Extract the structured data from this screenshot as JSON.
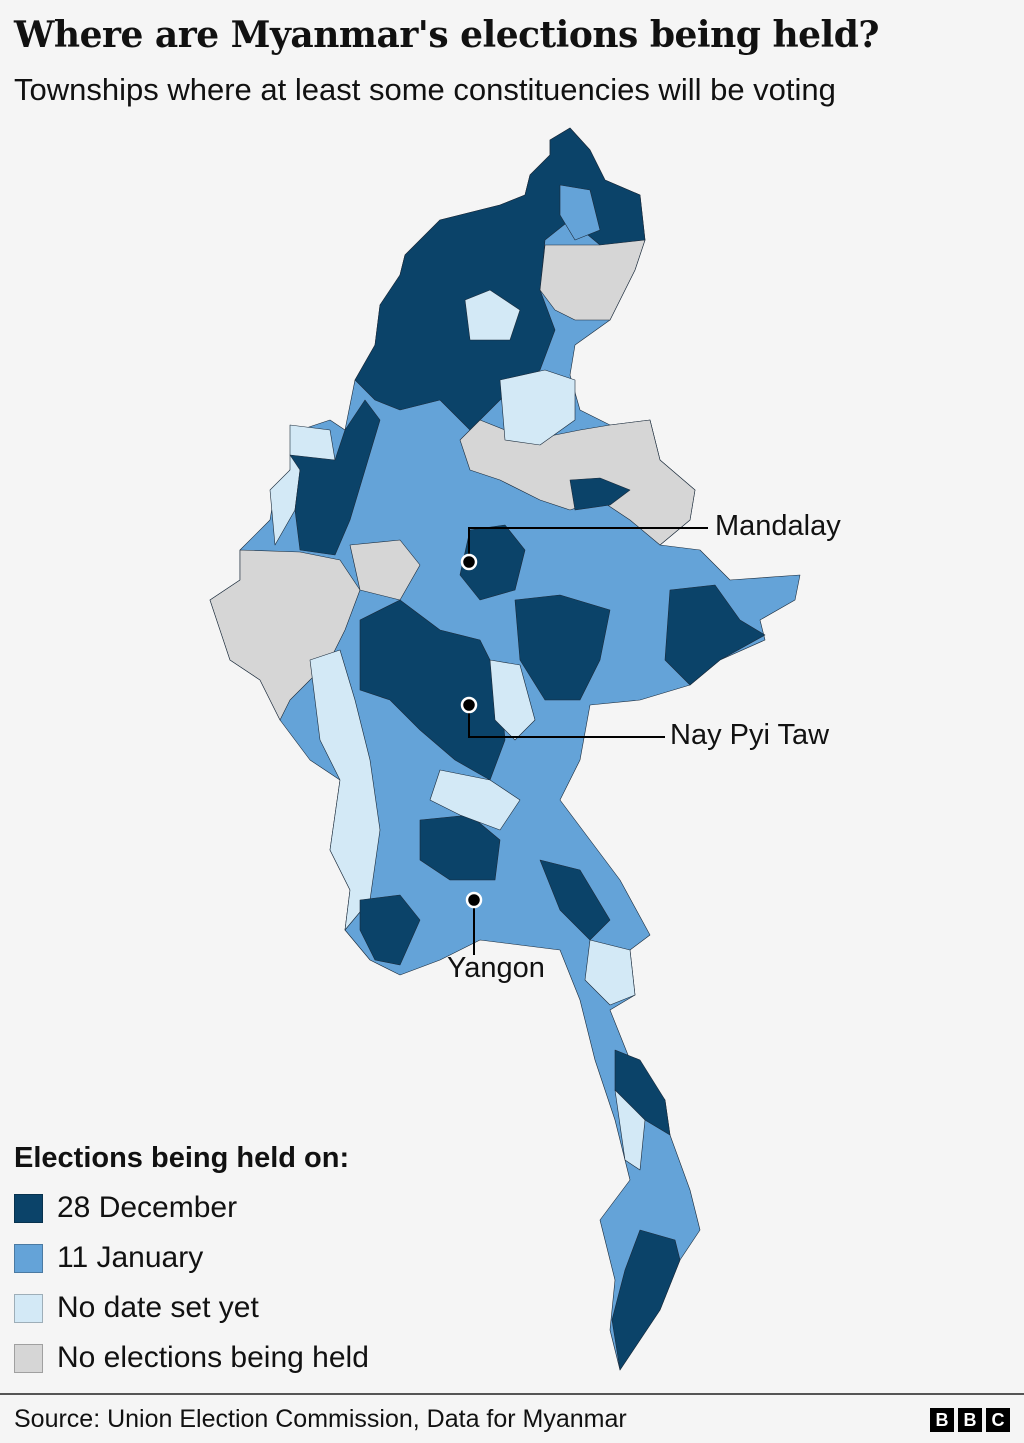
{
  "header": {
    "title": "Where are Myanmar's elections being held?",
    "subtitle": "Townships where at least some constituencies will be voting"
  },
  "colors": {
    "dec28": "#0b4369",
    "jan11": "#64a3d8",
    "no_date": "#d3e9f6",
    "no_election": "#d6d6d6",
    "background": "#f5f5f5"
  },
  "cities": [
    {
      "name": "Mandalay"
    },
    {
      "name": "Nay Pyi Taw"
    },
    {
      "name": "Yangon"
    }
  ],
  "legend": {
    "title": "Elections being held on:",
    "items": [
      {
        "label": "28 December",
        "color": "#0b4369"
      },
      {
        "label": "11 January",
        "color": "#64a3d8"
      },
      {
        "label": "No date set yet",
        "color": "#d3e9f6"
      },
      {
        "label": "No elections being held",
        "color": "#d6d6d6"
      }
    ]
  },
  "footer": {
    "source": "Source: Union Election Commission, Data for Myanmar",
    "logo": "BBC"
  }
}
